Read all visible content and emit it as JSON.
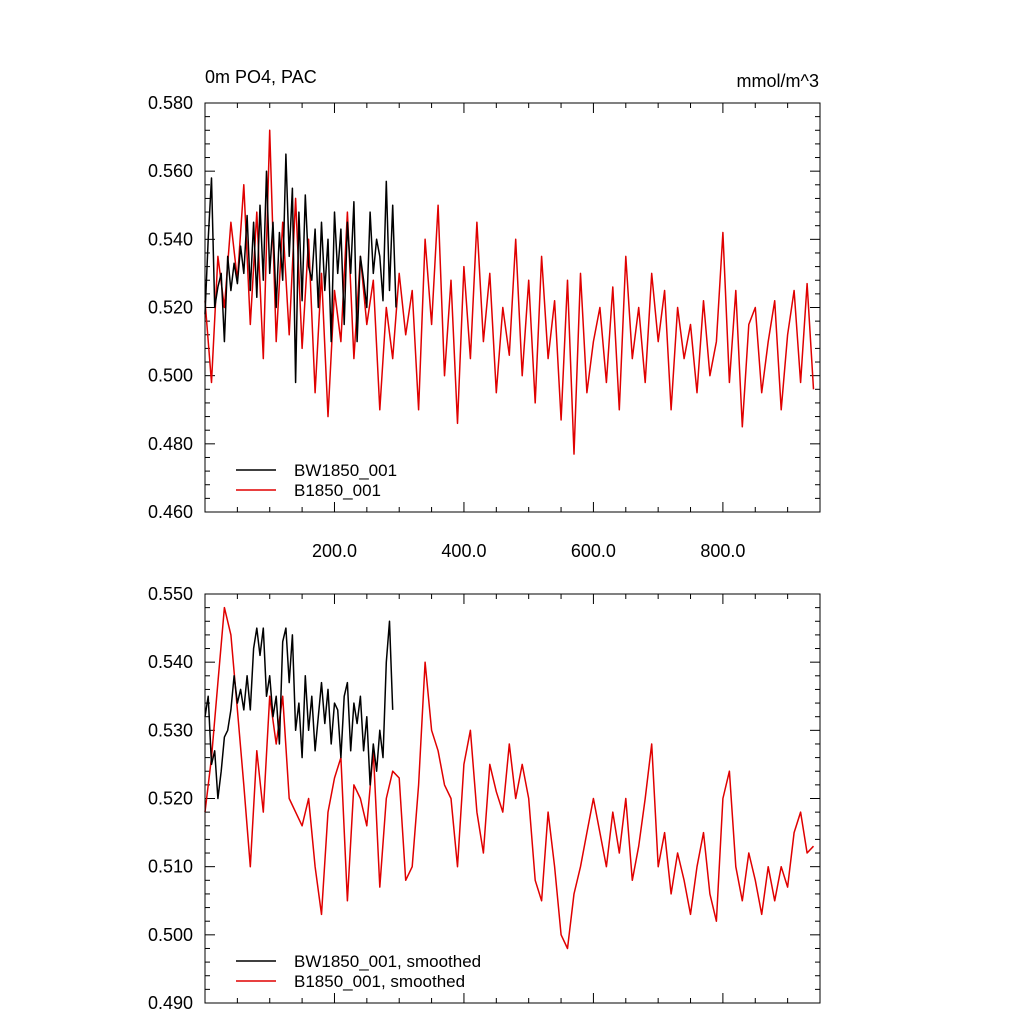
{
  "chart_data": [
    {
      "type": "line",
      "title": "0m PO4, PAC",
      "units_label": "mmol/m^3",
      "xlim": [
        0,
        950
      ],
      "ylim": [
        0.46,
        0.58
      ],
      "x_ticks": [
        200,
        400,
        600,
        800
      ],
      "x_tick_labels": [
        "200.0",
        "400.0",
        "600.0",
        "800.0"
      ],
      "y_ticks": [
        0.46,
        0.48,
        0.5,
        0.52,
        0.54,
        0.56,
        0.58
      ],
      "y_tick_labels": [
        "0.460",
        "0.480",
        "0.500",
        "0.520",
        "0.540",
        "0.560",
        "0.580"
      ],
      "legend_position": "bottom-left",
      "grid": false,
      "series": [
        {
          "name": "BW1850_001",
          "color": "#000000",
          "x": [
            0,
            5,
            10,
            15,
            20,
            25,
            30,
            35,
            40,
            45,
            50,
            55,
            60,
            65,
            70,
            75,
            80,
            85,
            90,
            95,
            100,
            105,
            110,
            115,
            120,
            125,
            130,
            135,
            140,
            145,
            150,
            155,
            160,
            165,
            170,
            175,
            180,
            185,
            190,
            195,
            200,
            205,
            210,
            215,
            220,
            225,
            230,
            235,
            240,
            245,
            250,
            255,
            260,
            265,
            270,
            275,
            280,
            285,
            290,
            295
          ],
          "values": [
            0.518,
            0.54,
            0.558,
            0.52,
            0.526,
            0.53,
            0.51,
            0.535,
            0.525,
            0.533,
            0.527,
            0.538,
            0.53,
            0.547,
            0.525,
            0.545,
            0.523,
            0.55,
            0.528,
            0.56,
            0.53,
            0.545,
            0.52,
            0.542,
            0.528,
            0.565,
            0.535,
            0.555,
            0.498,
            0.548,
            0.522,
            0.553,
            0.532,
            0.528,
            0.543,
            0.52,
            0.545,
            0.525,
            0.54,
            0.51,
            0.548,
            0.53,
            0.543,
            0.515,
            0.545,
            0.53,
            0.551,
            0.51,
            0.535,
            0.528,
            0.52,
            0.548,
            0.53,
            0.54,
            0.535,
            0.522,
            0.557,
            0.525,
            0.55,
            0.52
          ]
        },
        {
          "name": "B1850_001",
          "color": "#e00000",
          "x": [
            0,
            10,
            20,
            30,
            40,
            50,
            60,
            70,
            80,
            90,
            100,
            110,
            120,
            130,
            140,
            150,
            160,
            170,
            180,
            190,
            200,
            210,
            220,
            230,
            240,
            250,
            260,
            270,
            280,
            290,
            300,
            310,
            320,
            330,
            340,
            350,
            360,
            370,
            380,
            390,
            400,
            410,
            420,
            430,
            440,
            450,
            460,
            470,
            480,
            490,
            500,
            510,
            520,
            530,
            540,
            550,
            560,
            570,
            580,
            590,
            600,
            610,
            620,
            630,
            640,
            650,
            660,
            670,
            680,
            690,
            700,
            710,
            720,
            730,
            740,
            750,
            760,
            770,
            780,
            790,
            800,
            810,
            820,
            830,
            840,
            850,
            860,
            870,
            880,
            890,
            900,
            910,
            920,
            930,
            940
          ],
          "values": [
            0.522,
            0.498,
            0.535,
            0.52,
            0.545,
            0.528,
            0.556,
            0.515,
            0.548,
            0.505,
            0.572,
            0.51,
            0.545,
            0.512,
            0.552,
            0.508,
            0.54,
            0.495,
            0.53,
            0.488,
            0.525,
            0.51,
            0.548,
            0.505,
            0.535,
            0.515,
            0.528,
            0.49,
            0.52,
            0.505,
            0.53,
            0.512,
            0.525,
            0.49,
            0.54,
            0.515,
            0.55,
            0.5,
            0.528,
            0.486,
            0.532,
            0.505,
            0.545,
            0.51,
            0.53,
            0.495,
            0.52,
            0.506,
            0.54,
            0.5,
            0.528,
            0.492,
            0.535,
            0.505,
            0.522,
            0.487,
            0.528,
            0.477,
            0.53,
            0.495,
            0.51,
            0.52,
            0.498,
            0.526,
            0.49,
            0.535,
            0.505,
            0.52,
            0.498,
            0.53,
            0.51,
            0.525,
            0.49,
            0.52,
            0.505,
            0.515,
            0.495,
            0.522,
            0.5,
            0.51,
            0.542,
            0.498,
            0.525,
            0.485,
            0.515,
            0.52,
            0.495,
            0.51,
            0.522,
            0.49,
            0.512,
            0.525,
            0.498,
            0.527,
            0.496
          ]
        }
      ]
    },
    {
      "type": "line",
      "xlim": [
        0,
        950
      ],
      "ylim": [
        0.49,
        0.55
      ],
      "y_ticks": [
        0.49,
        0.5,
        0.51,
        0.52,
        0.53,
        0.54,
        0.55
      ],
      "y_tick_labels": [
        "0.490",
        "0.500",
        "0.510",
        "0.520",
        "0.530",
        "0.540",
        "0.550"
      ],
      "legend_position": "bottom-left",
      "grid": false,
      "series": [
        {
          "name": "BW1850_001, smoothed",
          "color": "#000000",
          "x": [
            0,
            5,
            10,
            15,
            20,
            25,
            30,
            35,
            40,
            45,
            50,
            55,
            60,
            65,
            70,
            75,
            80,
            85,
            90,
            95,
            100,
            105,
            110,
            115,
            120,
            125,
            130,
            135,
            140,
            145,
            150,
            155,
            160,
            165,
            170,
            175,
            180,
            185,
            190,
            195,
            200,
            205,
            210,
            215,
            220,
            225,
            230,
            235,
            240,
            245,
            250,
            255,
            260,
            265,
            270,
            275,
            280,
            285,
            290
          ],
          "values": [
            0.532,
            0.535,
            0.525,
            0.527,
            0.52,
            0.524,
            0.529,
            0.53,
            0.533,
            0.538,
            0.534,
            0.536,
            0.533,
            0.538,
            0.533,
            0.542,
            0.545,
            0.541,
            0.545,
            0.535,
            0.538,
            0.532,
            0.535,
            0.528,
            0.543,
            0.545,
            0.537,
            0.544,
            0.53,
            0.534,
            0.526,
            0.538,
            0.53,
            0.535,
            0.527,
            0.532,
            0.537,
            0.531,
            0.536,
            0.528,
            0.534,
            0.533,
            0.526,
            0.535,
            0.537,
            0.527,
            0.534,
            0.531,
            0.535,
            0.527,
            0.532,
            0.522,
            0.528,
            0.524,
            0.53,
            0.526,
            0.54,
            0.546,
            0.533
          ]
        },
        {
          "name": "B1850_001, smoothed",
          "color": "#e00000",
          "x": [
            0,
            10,
            20,
            30,
            40,
            50,
            60,
            70,
            80,
            90,
            100,
            110,
            120,
            130,
            140,
            150,
            160,
            170,
            180,
            190,
            200,
            210,
            220,
            230,
            240,
            250,
            260,
            270,
            280,
            290,
            300,
            310,
            320,
            330,
            340,
            350,
            360,
            370,
            380,
            390,
            400,
            410,
            420,
            430,
            440,
            450,
            460,
            470,
            480,
            490,
            500,
            510,
            520,
            530,
            540,
            550,
            560,
            570,
            580,
            590,
            600,
            610,
            620,
            630,
            640,
            650,
            660,
            670,
            680,
            690,
            700,
            710,
            720,
            730,
            740,
            750,
            760,
            770,
            780,
            790,
            800,
            810,
            820,
            830,
            840,
            850,
            860,
            870,
            880,
            890,
            900,
            910,
            920,
            930,
            940
          ],
          "values": [
            0.518,
            0.526,
            0.537,
            0.548,
            0.544,
            0.533,
            0.522,
            0.51,
            0.527,
            0.518,
            0.535,
            0.528,
            0.535,
            0.52,
            0.518,
            0.516,
            0.52,
            0.51,
            0.503,
            0.518,
            0.523,
            0.526,
            0.505,
            0.522,
            0.52,
            0.516,
            0.527,
            0.507,
            0.52,
            0.524,
            0.523,
            0.508,
            0.51,
            0.522,
            0.54,
            0.53,
            0.527,
            0.522,
            0.52,
            0.51,
            0.525,
            0.53,
            0.518,
            0.512,
            0.525,
            0.521,
            0.518,
            0.528,
            0.52,
            0.525,
            0.52,
            0.508,
            0.505,
            0.518,
            0.51,
            0.5,
            0.498,
            0.506,
            0.51,
            0.515,
            0.52,
            0.515,
            0.51,
            0.518,
            0.512,
            0.52,
            0.508,
            0.513,
            0.52,
            0.528,
            0.51,
            0.515,
            0.506,
            0.512,
            0.508,
            0.503,
            0.51,
            0.515,
            0.506,
            0.502,
            0.52,
            0.524,
            0.51,
            0.505,
            0.512,
            0.508,
            0.503,
            0.51,
            0.505,
            0.51,
            0.507,
            0.515,
            0.518,
            0.512,
            0.513
          ]
        }
      ]
    }
  ]
}
